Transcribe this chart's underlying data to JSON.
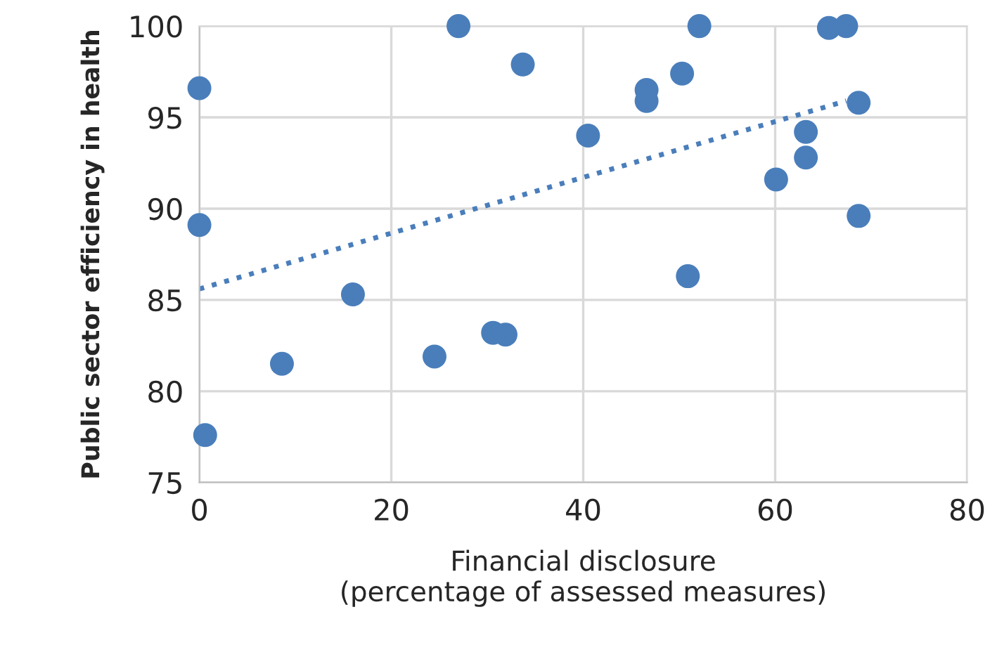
{
  "chart_data": {
    "type": "scatter",
    "xlabel": "Financial disclosure\n(percentage of assessed measures)",
    "ylabel": "Public sector efficiency in health",
    "xlim": [
      0,
      80
    ],
    "xticks": [
      0,
      20,
      40,
      60,
      80
    ],
    "ylim": [
      75,
      100
    ],
    "yticks": [
      75,
      80,
      85,
      90,
      95,
      100
    ],
    "grid": true,
    "legend": false,
    "series": [
      {
        "color": "#4a7ebb",
        "marker": "circle",
        "x": [
          0,
          0,
          0.6,
          8.6,
          16.0,
          24.5,
          27.0,
          30.6,
          31.9,
          33.7,
          40.5,
          46.6,
          46.6,
          50.3,
          50.9,
          52.1,
          60.1,
          63.2,
          63.2,
          65.6,
          67.4,
          68.7,
          68.7
        ],
        "values": [
          96.6,
          89.1,
          77.6,
          81.5,
          85.3,
          81.9,
          100,
          83.2,
          83.1,
          97.9,
          94.0,
          96.5,
          95.9,
          97.4,
          86.3,
          100,
          91.6,
          94.2,
          92.8,
          99.9,
          100,
          95.8,
          89.6
        ]
      },
      {
        "type": "line",
        "color": "#4a7ebb",
        "line_style": "dotted",
        "x": [
          0,
          67.4
        ],
        "values": [
          85.6,
          95.9
        ]
      }
    ]
  }
}
